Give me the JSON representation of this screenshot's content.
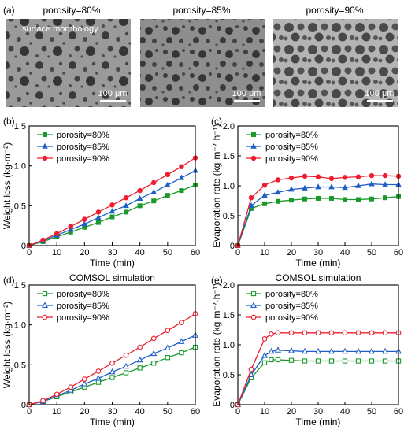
{
  "sem": {
    "label": "(a)",
    "note": "surface morphology",
    "images": [
      {
        "title": "porosity=80%",
        "scale": "100 μm"
      },
      {
        "title": "porosity=85%",
        "scale": "100 μm"
      },
      {
        "title": "porosity=90%",
        "scale": "100 μm"
      }
    ]
  },
  "colors": {
    "p80": "#1a9a2b",
    "p85": "#1f5fc8",
    "p90": "#ee1c2c"
  },
  "chart_data": [
    {
      "panel": "(b)",
      "type": "line",
      "title": "",
      "xlabel": "Time (min)",
      "ylabel": "Weight loss (kg·m⁻²)",
      "xlim": [
        0,
        60
      ],
      "ylim": [
        0,
        1.5
      ],
      "xticks": [
        0,
        10,
        20,
        30,
        40,
        50,
        60
      ],
      "yticks": [
        0,
        0.5,
        1.0,
        1.5
      ],
      "ytick_labels": [
        "0",
        "0.5",
        "1.0",
        "1.5"
      ],
      "marker_fill": "solid",
      "x": [
        0,
        5,
        10,
        15,
        20,
        25,
        30,
        35,
        40,
        45,
        50,
        55,
        60
      ],
      "series": [
        {
          "name": "porosity=80%",
          "marker": "square",
          "values": [
            0,
            0.05,
            0.11,
            0.17,
            0.23,
            0.29,
            0.36,
            0.42,
            0.5,
            0.56,
            0.63,
            0.69,
            0.76
          ]
        },
        {
          "name": "porosity=85%",
          "marker": "triangle",
          "values": [
            0,
            0.06,
            0.13,
            0.2,
            0.27,
            0.35,
            0.43,
            0.5,
            0.59,
            0.67,
            0.76,
            0.85,
            0.94
          ]
        },
        {
          "name": "porosity=90%",
          "marker": "circle",
          "values": [
            0,
            0.07,
            0.15,
            0.24,
            0.33,
            0.42,
            0.51,
            0.6,
            0.69,
            0.79,
            0.89,
            0.99,
            1.1
          ]
        }
      ]
    },
    {
      "panel": "(c)",
      "type": "line",
      "title": "",
      "xlabel": "Time (min)",
      "ylabel": "Evaporation rate (kg·m⁻²·h⁻¹)",
      "xlim": [
        0,
        60
      ],
      "ylim": [
        0,
        2.0
      ],
      "xticks": [
        0,
        10,
        20,
        30,
        40,
        50,
        60
      ],
      "yticks": [
        0,
        0.5,
        1.0,
        1.5,
        2.0
      ],
      "ytick_labels": [
        "0",
        "0.5",
        "1.0",
        "1.5",
        "2.0"
      ],
      "marker_fill": "solid",
      "x": [
        0,
        5,
        10,
        15,
        20,
        25,
        30,
        35,
        40,
        45,
        50,
        55,
        60
      ],
      "series": [
        {
          "name": "porosity=80%",
          "marker": "square",
          "values": [
            0,
            0.62,
            0.7,
            0.74,
            0.76,
            0.78,
            0.79,
            0.79,
            0.77,
            0.77,
            0.78,
            0.8,
            0.82
          ]
        },
        {
          "name": "porosity=85%",
          "marker": "triangle",
          "values": [
            0,
            0.67,
            0.84,
            0.89,
            0.94,
            0.96,
            0.98,
            0.98,
            0.97,
            1.0,
            1.03,
            1.02,
            1.02
          ]
        },
        {
          "name": "porosity=90%",
          "marker": "circle",
          "values": [
            0,
            0.8,
            1.01,
            1.1,
            1.13,
            1.16,
            1.15,
            1.12,
            1.14,
            1.15,
            1.17,
            1.17,
            1.16
          ]
        }
      ]
    },
    {
      "panel": "(d)",
      "type": "line",
      "title": "COMSOL simulation",
      "xlabel": "Time (min)",
      "ylabel": "Weight loss (kg·m⁻²)",
      "xlim": [
        0,
        60
      ],
      "ylim": [
        0,
        1.5
      ],
      "xticks": [
        0,
        10,
        20,
        30,
        40,
        50,
        60
      ],
      "yticks": [
        0,
        0.5,
        1.0,
        1.5
      ],
      "ytick_labels": [
        "0",
        "0.5",
        "1.0",
        "1.5"
      ],
      "marker_fill": "hollow",
      "x": [
        0,
        5,
        10,
        15,
        20,
        25,
        30,
        35,
        40,
        45,
        50,
        55,
        60
      ],
      "series": [
        {
          "name": "porosity=80%",
          "marker": "square",
          "values": [
            0,
            0.04,
            0.1,
            0.16,
            0.22,
            0.28,
            0.34,
            0.4,
            0.46,
            0.52,
            0.59,
            0.65,
            0.72
          ]
        },
        {
          "name": "porosity=85%",
          "marker": "triangle",
          "values": [
            0,
            0.04,
            0.11,
            0.18,
            0.26,
            0.33,
            0.41,
            0.48,
            0.56,
            0.64,
            0.71,
            0.79,
            0.87
          ]
        },
        {
          "name": "porosity=90%",
          "marker": "circle",
          "values": [
            0,
            0.05,
            0.13,
            0.22,
            0.32,
            0.42,
            0.52,
            0.62,
            0.72,
            0.83,
            0.93,
            1.03,
            1.14
          ]
        }
      ]
    },
    {
      "panel": "(e)",
      "type": "line",
      "title": "COMSOL simulation",
      "xlabel": "Time (min)",
      "ylabel": "Evaporation rate (kg·m⁻²·h⁻¹)",
      "xlim": [
        0,
        60
      ],
      "ylim": [
        0,
        2.0
      ],
      "xticks": [
        0,
        10,
        20,
        30,
        40,
        50,
        60
      ],
      "yticks": [
        0,
        0.5,
        1.0,
        1.5,
        2.0
      ],
      "ytick_labels": [
        "0",
        "0.5",
        "1.0",
        "1.5",
        "2.0"
      ],
      "marker_fill": "hollow",
      "x": [
        0,
        5,
        10,
        12.5,
        15,
        20,
        25,
        30,
        35,
        40,
        45,
        50,
        55,
        60
      ],
      "series": [
        {
          "name": "porosity=80%",
          "marker": "square",
          "values": [
            0,
            0.45,
            0.7,
            0.75,
            0.75,
            0.74,
            0.73,
            0.73,
            0.73,
            0.73,
            0.73,
            0.73,
            0.73,
            0.73
          ]
        },
        {
          "name": "porosity=85%",
          "marker": "triangle",
          "values": [
            0,
            0.5,
            0.82,
            0.89,
            0.91,
            0.9,
            0.89,
            0.89,
            0.89,
            0.89,
            0.89,
            0.89,
            0.89,
            0.89
          ]
        },
        {
          "name": "porosity=90%",
          "marker": "circle",
          "values": [
            0,
            0.59,
            1.1,
            1.18,
            1.2,
            1.2,
            1.2,
            1.2,
            1.2,
            1.2,
            1.2,
            1.2,
            1.2,
            1.2
          ]
        }
      ]
    }
  ]
}
